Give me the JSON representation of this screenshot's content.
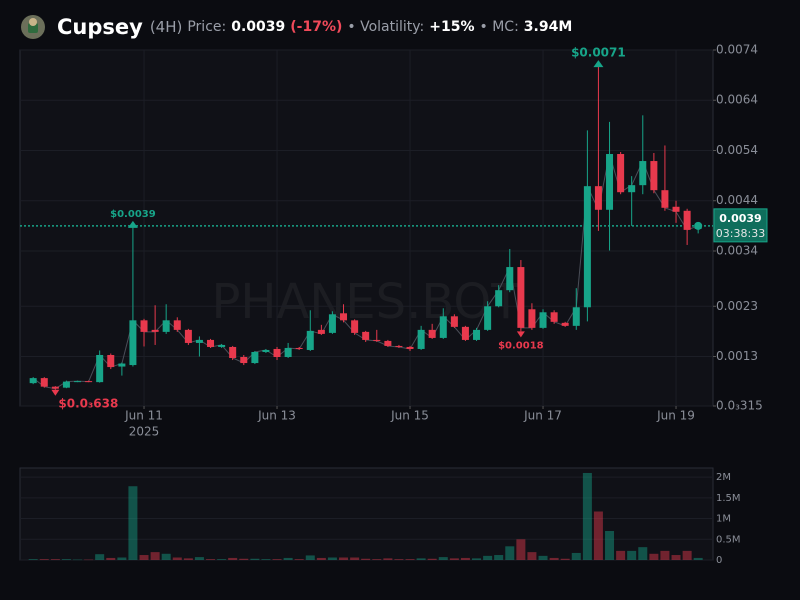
{
  "header": {
    "name": "Cupsey",
    "interval": "(4H)",
    "price_label": "Price:",
    "price": "0.0039",
    "change": "(-17%)",
    "volatility_label": "• Volatility:",
    "volatility": "+15%",
    "mc_label": "• MC:",
    "mc": "3.94M"
  },
  "chart_data": {
    "type": "candlestick",
    "x": [
      9.333,
      9.5,
      9.667,
      9.833,
      10,
      10.167,
      10.333,
      10.5,
      10.667,
      10.833,
      11,
      11.167,
      11.333,
      11.5,
      11.667,
      11.833,
      12,
      12.167,
      12.333,
      12.5,
      12.667,
      12.833,
      13,
      13.167,
      13.333,
      13.5,
      13.667,
      13.833,
      14,
      14.167,
      14.333,
      14.5,
      14.667,
      14.833,
      15,
      15.167,
      15.333,
      15.5,
      15.667,
      15.833,
      16,
      16.167,
      16.333,
      16.5,
      16.667,
      16.833,
      17,
      17.167,
      17.333,
      17.5,
      17.667,
      17.833,
      18,
      18.167,
      18.333,
      18.5,
      18.667,
      18.833,
      19,
      19.167,
      19.333
    ],
    "open": [
      0.00077,
      0.00087,
      0.0007,
      0.00068,
      0.0008,
      0.00081,
      0.00079,
      0.00133,
      0.0011,
      0.00113,
      0.00202,
      0.00183,
      0.00179,
      0.00202,
      0.00183,
      0.00157,
      0.00163,
      0.00149,
      0.00149,
      0.00129,
      0.00117,
      0.00139,
      0.00145,
      0.00129,
      0.00147,
      0.00143,
      0.00183,
      0.00177,
      0.00216,
      0.00202,
      0.00179,
      0.00163,
      0.00161,
      0.00151,
      0.00149,
      0.00145,
      0.00183,
      0.00167,
      0.0021,
      0.00189,
      0.00163,
      0.00183,
      0.0023,
      0.00262,
      0.00308,
      0.00224,
      0.00187,
      0.00218,
      0.00197,
      0.00191,
      0.00228,
      0.00469,
      0.00422,
      0.00533,
      0.00457,
      0.00471,
      0.00519,
      0.00461,
      0.00428,
      0.0042,
      0.00384
    ],
    "high": [
      0.00089,
      0.00089,
      0.00071,
      0.00082,
      0.00082,
      0.00082,
      0.00142,
      0.00136,
      0.00118,
      0.0039,
      0.00205,
      0.00232,
      0.00234,
      0.00208,
      0.00185,
      0.0017,
      0.00165,
      0.00155,
      0.00151,
      0.00133,
      0.00141,
      0.00145,
      0.00149,
      0.00157,
      0.00149,
      0.00222,
      0.00193,
      0.0022,
      0.00234,
      0.00204,
      0.00181,
      0.00183,
      0.00163,
      0.00153,
      0.00151,
      0.00191,
      0.00195,
      0.00226,
      0.00214,
      0.00191,
      0.00187,
      0.0024,
      0.00272,
      0.00344,
      0.00322,
      0.00236,
      0.00224,
      0.00222,
      0.00199,
      0.00266,
      0.0058,
      0.0071,
      0.00597,
      0.00537,
      0.00489,
      0.0061,
      0.00535,
      0.0055,
      0.0044,
      0.00424,
      0.00396
    ],
    "low": [
      0.00075,
      0.00068,
      0.000638,
      0.00067,
      0.00079,
      0.00079,
      0.00078,
      0.00105,
      0.00092,
      0.0011,
      0.0015,
      0.00153,
      0.00175,
      0.00179,
      0.00153,
      0.0013,
      0.00147,
      0.00147,
      0.00123,
      0.00113,
      0.00115,
      0.00137,
      0.00123,
      0.00127,
      0.00143,
      0.00141,
      0.00173,
      0.00175,
      0.00198,
      0.00173,
      0.00159,
      0.00159,
      0.00149,
      0.00147,
      0.00141,
      0.00143,
      0.00165,
      0.00165,
      0.00187,
      0.00161,
      0.00161,
      0.00181,
      0.00228,
      0.00258,
      0.0018,
      0.00183,
      0.00185,
      0.00195,
      0.00189,
      0.00183,
      0.002,
      0.0038,
      0.00341,
      0.00453,
      0.0039,
      0.00453,
      0.00455,
      0.0042,
      0.00396,
      0.00352,
      0.00375
    ],
    "close": [
      0.00087,
      0.0007,
      0.00066,
      0.0008,
      0.00081,
      0.0008,
      0.00133,
      0.00109,
      0.00116,
      0.00202,
      0.00179,
      0.00179,
      0.00202,
      0.00183,
      0.00157,
      0.00163,
      0.00149,
      0.00153,
      0.00127,
      0.00117,
      0.00139,
      0.00143,
      0.00129,
      0.00147,
      0.00145,
      0.00181,
      0.00175,
      0.00214,
      0.00202,
      0.00177,
      0.00163,
      0.00161,
      0.00151,
      0.00149,
      0.00145,
      0.00183,
      0.00167,
      0.0021,
      0.00189,
      0.00163,
      0.00183,
      0.0023,
      0.00262,
      0.00308,
      0.00187,
      0.00187,
      0.00218,
      0.00199,
      0.00191,
      0.00228,
      0.00469,
      0.00422,
      0.00533,
      0.00457,
      0.00471,
      0.00519,
      0.00461,
      0.00426,
      0.00418,
      0.00382,
      0.0039
    ],
    "xlim": [
      9.135,
      19.556
    ],
    "xticks": [
      {
        "value": 11,
        "label": "Jun 11"
      },
      {
        "value": 13,
        "label": "Jun 13"
      },
      {
        "value": 15,
        "label": "Jun 15"
      },
      {
        "value": 17,
        "label": "Jun 17"
      },
      {
        "value": 19,
        "label": "Jun 19"
      }
    ],
    "x_year": "2025",
    "ylim": [
      0.000315,
      0.0074
    ],
    "yticks": [
      0.0074,
      0.0064,
      0.0054,
      0.0044,
      0.0034,
      0.0023,
      0.0013,
      {
        "value": 0.000315,
        "label": "0.0₃315"
      }
    ],
    "grid": true,
    "up_color": "#17a589",
    "down_color": "#e8394d",
    "current_price": {
      "value": 0.0039,
      "label": "0.0039",
      "countdown": "03:38:33"
    },
    "annotations": [
      {
        "x": 10.833,
        "value": 0.0039,
        "label": "$0.0039",
        "position": "above",
        "color": "#17a589"
      },
      {
        "x": 17.833,
        "value": 0.0071,
        "label": "$0.0071",
        "position": "above",
        "color": "#17a589"
      },
      {
        "x": 16.667,
        "value": 0.0018,
        "label": "$0.0018",
        "position": "below",
        "color": "#e8394d"
      },
      {
        "x": 9.667,
        "value": 0.000638,
        "label": "$0.0₃638",
        "position": "below",
        "color": "#e8394d"
      }
    ],
    "watermark": "PHANES.BOT",
    "volume": {
      "values": [
        20000,
        20000,
        20000,
        20000,
        10000,
        10000,
        140000,
        50000,
        60000,
        1780000,
        120000,
        190000,
        150000,
        60000,
        40000,
        70000,
        20000,
        20000,
        50000,
        30000,
        30000,
        20000,
        20000,
        50000,
        20000,
        110000,
        50000,
        60000,
        60000,
        60000,
        30000,
        20000,
        40000,
        20000,
        20000,
        40000,
        30000,
        70000,
        40000,
        50000,
        40000,
        100000,
        120000,
        330000,
        500000,
        190000,
        100000,
        50000,
        30000,
        170000,
        2100000,
        1170000,
        700000,
        220000,
        220000,
        310000,
        150000,
        220000,
        120000,
        220000,
        50000
      ],
      "ylim": [
        0,
        2220000
      ],
      "yticks": [
        0,
        {
          "value": 500000,
          "label": "0.5M"
        },
        {
          "value": 1000000,
          "label": "1M"
        },
        {
          "value": 1500000,
          "label": "1.5M"
        },
        {
          "value": 2000000,
          "label": "2M"
        }
      ]
    }
  }
}
